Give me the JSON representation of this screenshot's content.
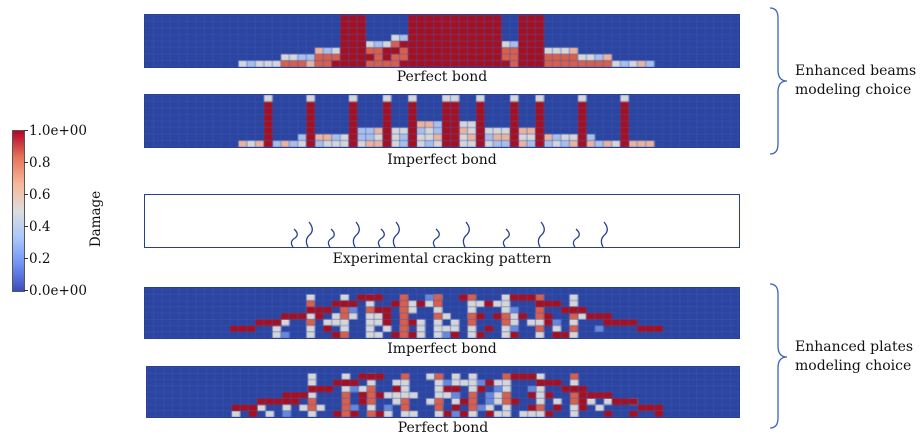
{
  "colorbar": {
    "title": "Damage",
    "ticks": [
      "1.0e+00",
      "0.8",
      "0.6",
      "0.4",
      "0.2",
      "0.0e+00"
    ],
    "colors": [
      "#3b4cc0",
      "#6f92f3",
      "#aac7fd",
      "#dddddd",
      "#f7b89c",
      "#e7745b",
      "#b40426"
    ]
  },
  "panels": {
    "beam_perfect": {
      "caption": "Perfect bond",
      "pattern": "beams-perfect"
    },
    "beam_imperfect": {
      "caption": "Imperfect bond",
      "pattern": "beams-imperfect"
    },
    "experimental": {
      "caption": "Experimental cracking pattern",
      "crack_color": "#27408f"
    },
    "plate_imperfect": {
      "caption": "Imperfect bond",
      "pattern": "plates-imperfect"
    },
    "plate_perfect": {
      "caption": "Perfect bond",
      "pattern": "plates-perfect"
    }
  },
  "groups": {
    "beams": {
      "label_line1": "Enhanced beams",
      "label_line2": "modeling choice"
    },
    "plates": {
      "label_line1": "Enhanced plates",
      "label_line2": "modeling choice"
    }
  },
  "mesh_colors": {
    "background": "#2b45a0",
    "grid": "#3f5bb8"
  }
}
